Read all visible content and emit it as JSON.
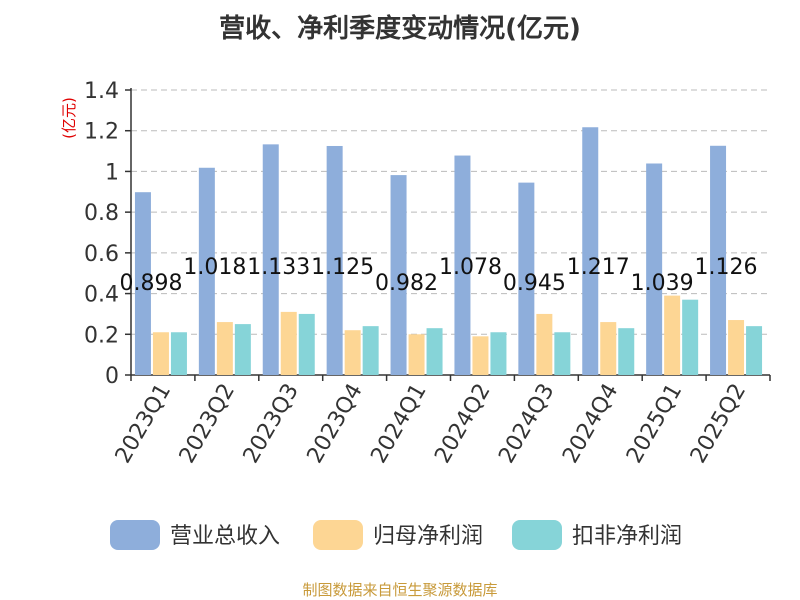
{
  "title": "营收、净利季度变动情况(亿元)",
  "footer": "制图数据来自恒生聚源数据库",
  "colors": {
    "revenue": "#8eaedb",
    "net_profit": "#fdd694",
    "deducted_profit": "#86d4d8",
    "axis_unit": "#e00000",
    "grid": "#bbbbbb",
    "text": "#333333"
  },
  "chart_data": {
    "type": "bar",
    "title": "营收、净利季度变动情况(亿元)",
    "ylabel": "(亿元)",
    "xlabel": "",
    "ylim": [
      0,
      1.4
    ],
    "yticks": [
      0,
      0.2,
      0.4,
      0.6,
      0.8,
      1,
      1.2,
      1.4
    ],
    "grid": true,
    "legend_position": "bottom",
    "categories": [
      "2023Q1",
      "2023Q2",
      "2023Q3",
      "2023Q4",
      "2024Q1",
      "2024Q2",
      "2024Q3",
      "2024Q4",
      "2025Q1",
      "2025Q2"
    ],
    "series": [
      {
        "name": "营业总收入",
        "values": [
          0.898,
          1.018,
          1.133,
          1.125,
          0.982,
          1.078,
          0.945,
          1.217,
          1.039,
          1.126
        ],
        "labels": [
          "0.898",
          "1.018",
          "1.133",
          "1.125",
          "0.982",
          "1.078",
          "0.945",
          "1.217",
          "1.039",
          "1.126"
        ]
      },
      {
        "name": "归母净利润",
        "values": [
          0.21,
          0.26,
          0.31,
          0.22,
          0.2,
          0.19,
          0.3,
          0.26,
          0.39,
          0.27
        ]
      },
      {
        "name": "扣非净利润",
        "values": [
          0.21,
          0.25,
          0.3,
          0.24,
          0.23,
          0.21,
          0.21,
          0.23,
          0.37,
          0.24
        ]
      }
    ]
  }
}
